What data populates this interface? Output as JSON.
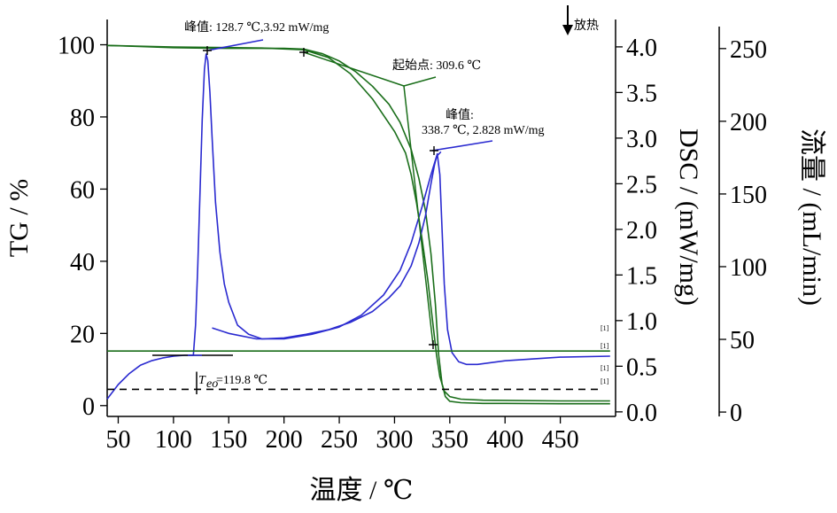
{
  "chart_data": {
    "type": "line",
    "xlabel": "温度 / ℃",
    "ylabel_left": "TG / %",
    "ylabel_right1": "DSC / (mW/mg)",
    "ylabel_right2": "流量 / (mL/min)",
    "exo_label": "放热",
    "xlim": [
      40,
      500
    ],
    "ylim_tg": [
      -3,
      107
    ],
    "ylim_dsc": [
      -0.05,
      4.3
    ],
    "ylim_flow": [
      -3,
      270
    ],
    "x_ticks": [
      "50",
      "100",
      "150",
      "200",
      "250",
      "300",
      "350",
      "400",
      "450"
    ],
    "x_tick_values": [
      50,
      100,
      150,
      200,
      250,
      300,
      350,
      400,
      450
    ],
    "tg_ticks": [
      "0",
      "20",
      "40",
      "60",
      "80",
      "100"
    ],
    "tg_tick_values": [
      0,
      20,
      40,
      60,
      80,
      100
    ],
    "dsc_ticks": [
      "0.0",
      "0.5",
      "1.0",
      "1.5",
      "2.0",
      "2.5",
      "3.0",
      "3.5",
      "4.0"
    ],
    "dsc_tick_values": [
      0.0,
      0.5,
      1.0,
      1.5,
      2.0,
      2.5,
      3.0,
      3.5,
      4.0
    ],
    "flow_ticks": [
      "0",
      "50",
      "100",
      "150",
      "200",
      "250"
    ],
    "flow_tick_values": [
      0,
      50,
      100,
      150,
      200,
      250
    ],
    "series": [
      {
        "axis": "tg",
        "color": "#1a6e1a",
        "x": [
          40,
          60,
          80,
          100,
          120,
          150,
          180,
          200,
          218,
          235,
          250,
          265,
          280,
          295,
          305,
          315,
          322,
          328,
          333,
          337,
          340,
          343,
          346,
          350,
          360,
          380,
          400,
          450,
          495
        ],
        "values": [
          99.8,
          99.6,
          99.4,
          99.2,
          99.1,
          99.0,
          99.0,
          99.0,
          98.8,
          97.5,
          95.5,
          92.5,
          88.5,
          83.5,
          78.5,
          71,
          63,
          54,
          42,
          28,
          14,
          6,
          2.5,
          1.2,
          0.8,
          0.6,
          0.6,
          0.5,
          0.5
        ]
      },
      {
        "axis": "tg",
        "color": "#1a6e1a",
        "x": [
          40,
          100,
          180,
          218,
          240,
          260,
          280,
          300,
          310,
          315,
          320,
          325,
          330,
          335,
          338,
          341,
          345,
          350,
          360,
          380,
          450,
          495
        ],
        "values": [
          99.8,
          99.4,
          99.1,
          98.6,
          96.5,
          92,
          85,
          76,
          70,
          64,
          56,
          46,
          35,
          22,
          14,
          8,
          4,
          2.5,
          1.8,
          1.5,
          1.3,
          1.3
        ]
      },
      {
        "axis": "dsc",
        "color": "#2a2ad0",
        "x": [
          40,
          50,
          60,
          70,
          80,
          90,
          100,
          110,
          118,
          120,
          122,
          124,
          126,
          128,
          129.5,
          131,
          133,
          135,
          138,
          142,
          146,
          150,
          158,
          168,
          180,
          200,
          220,
          240,
          260,
          280,
          295,
          305,
          315,
          322,
          328,
          333,
          336,
          338.7,
          341,
          343,
          345,
          348,
          352,
          358,
          365,
          375,
          400,
          450,
          495
        ],
        "values": [
          0.14,
          0.3,
          0.42,
          0.51,
          0.56,
          0.59,
          0.61,
          0.62,
          0.62,
          0.95,
          1.6,
          2.4,
          3.2,
          3.75,
          3.92,
          3.85,
          3.5,
          3.0,
          2.3,
          1.75,
          1.4,
          1.2,
          0.95,
          0.85,
          0.8,
          0.81,
          0.85,
          0.9,
          0.98,
          1.1,
          1.25,
          1.38,
          1.6,
          1.85,
          2.15,
          2.5,
          2.7,
          2.828,
          2.6,
          2.0,
          1.4,
          0.9,
          0.65,
          0.55,
          0.52,
          0.52,
          0.56,
          0.6,
          0.61
        ]
      },
      {
        "axis": "dsc",
        "color": "#2a2ad0",
        "x": [
          135,
          150,
          175,
          200,
          225,
          250,
          270,
          290,
          305,
          315,
          325,
          333,
          338,
          342
        ],
        "values": [
          0.92,
          0.86,
          0.8,
          0.8,
          0.85,
          0.93,
          1.06,
          1.28,
          1.55,
          1.85,
          2.25,
          2.6,
          2.8,
          2.85
        ]
      },
      {
        "axis": "flow",
        "color": "#1a6e1a",
        "x": [
          40,
          495
        ],
        "values": [
          42,
          42
        ]
      }
    ],
    "annotations": [
      {
        "id": "peak1",
        "lines": [
          "峰值: 128.7 ℃,3.92 mW/mg"
        ]
      },
      {
        "id": "onset",
        "lines": [
          "起始点: 309.6 ℃"
        ]
      },
      {
        "id": "peak2",
        "lines": [
          "峰值:",
          "338.7 ℃, 2.828 mW/mg"
        ]
      },
      {
        "id": "teo_sub",
        "text": "eo"
      },
      {
        "id": "teo_main",
        "text": "T"
      },
      {
        "id": "teo_val",
        "text": "=119.8 ℃"
      }
    ],
    "tiny_labels": [
      "[1]",
      "[1]",
      "[1]",
      "[1]"
    ],
    "teo_line_value": 4.5,
    "legend": "none",
    "grid": false
  }
}
